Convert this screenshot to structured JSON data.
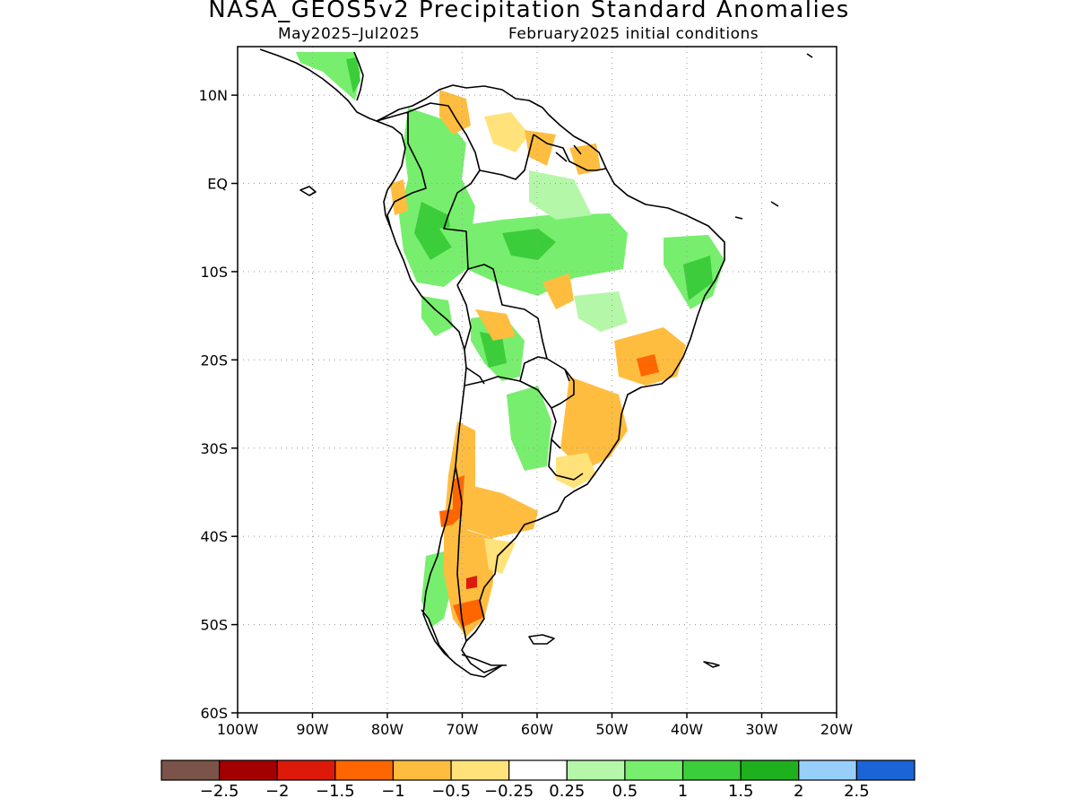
{
  "map": {
    "title": "NASA_GEOS5v2 Precipitation Standard Anomalies",
    "period": "May2025–Jul2025",
    "initial_conditions": "February2025 initial conditions",
    "lat_labels": [
      "10N",
      "EQ",
      "10S",
      "20S",
      "30S",
      "40S",
      "50S",
      "60S"
    ],
    "lon_labels": [
      "100W",
      "90W",
      "80W",
      "70W",
      "60W",
      "50W",
      "40W",
      "30W",
      "20W"
    ],
    "extent": {
      "lon_min": -100,
      "lon_max": -20,
      "lat_min": -60,
      "lat_max": 15.5
    }
  },
  "colorbar": {
    "colors": [
      "#7b5348",
      "#a50000",
      "#dd1a0a",
      "#ff6600",
      "#ffbd40",
      "#ffe37a",
      "#ffffff",
      "#b4f7a8",
      "#78ee6e",
      "#3ccd3a",
      "#1fb01e",
      "#96d0fa",
      "#1a64d6"
    ],
    "labels": [
      "−2.5",
      "−2",
      "−1.5",
      "−1",
      "−0.5",
      "−0.25",
      "0.25",
      "0.5",
      "1",
      "1.5",
      "2",
      "2.5"
    ]
  }
}
